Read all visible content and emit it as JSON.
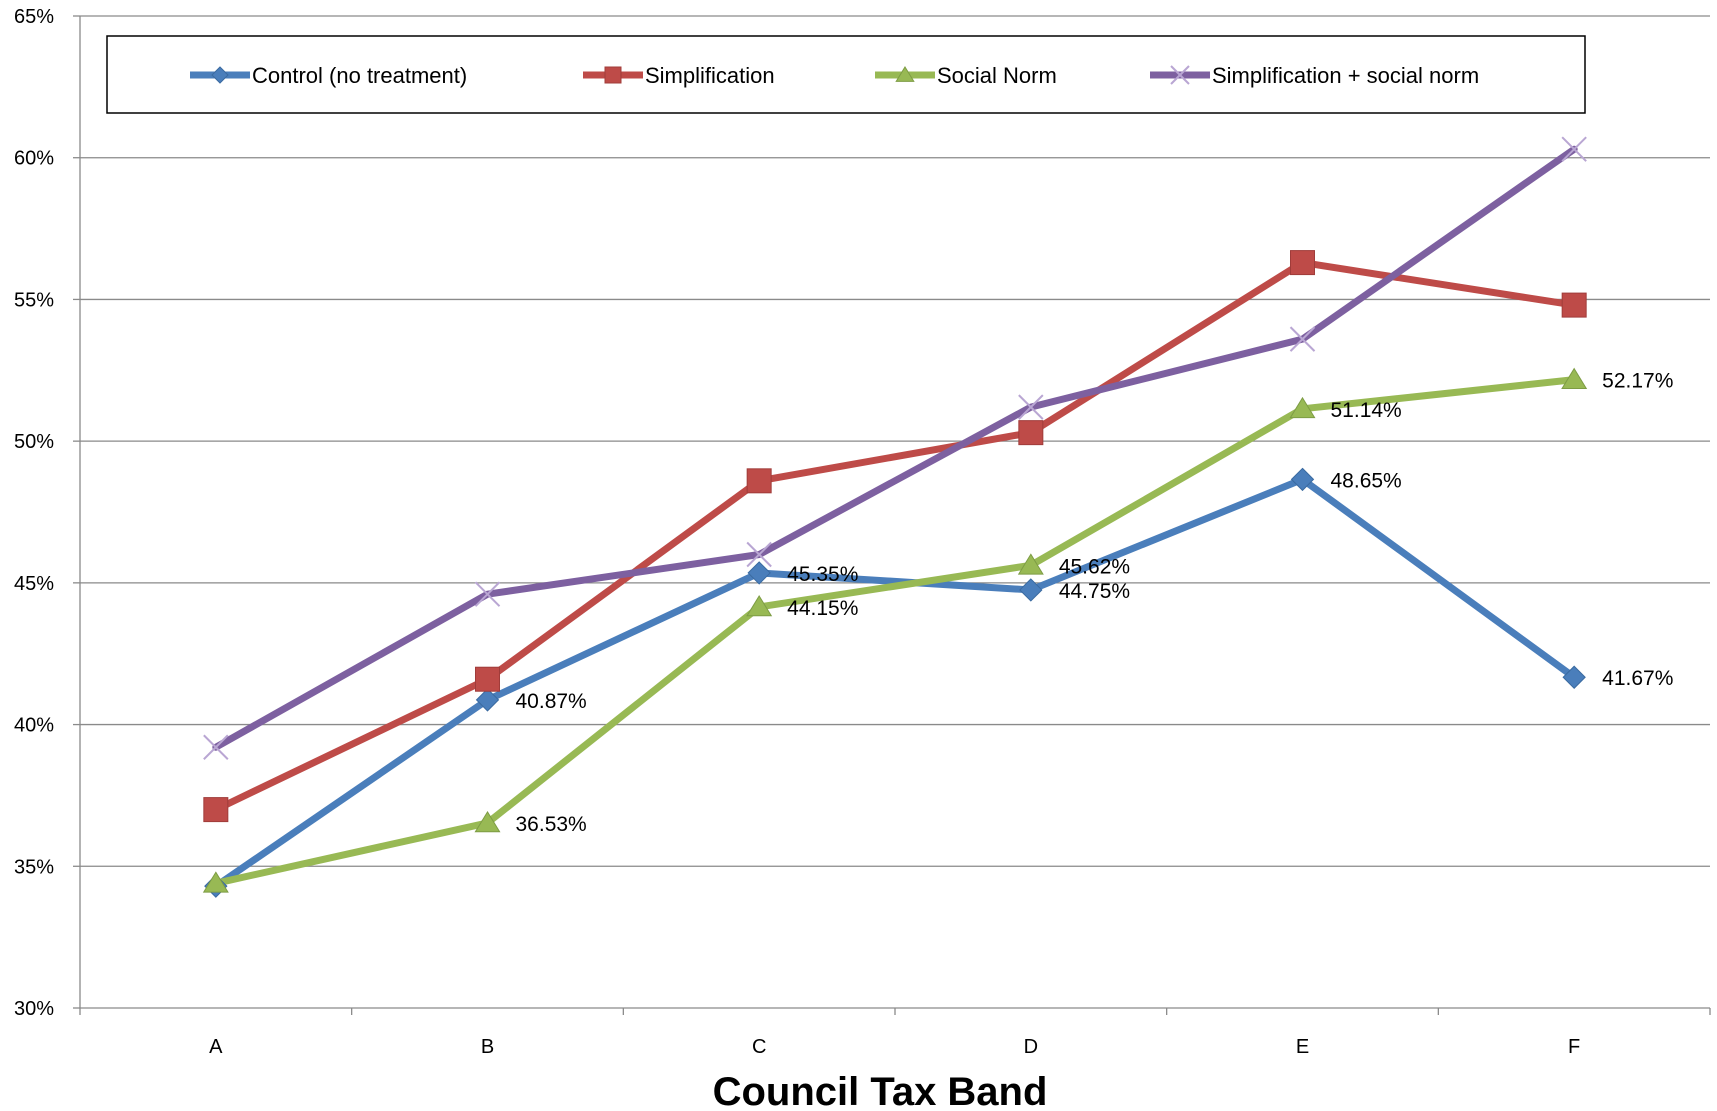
{
  "chart_data": {
    "type": "line",
    "title": "",
    "xlabel": "Council Tax Band",
    "ylabel": "",
    "categories": [
      "A",
      "B",
      "C",
      "D",
      "E",
      "F"
    ],
    "ylim": [
      30,
      65
    ],
    "yticks": [
      30,
      35,
      40,
      45,
      50,
      55,
      60,
      65
    ],
    "ytick_labels": [
      "30%",
      "35%",
      "40%",
      "45%",
      "50%",
      "55%",
      "60%",
      "65%"
    ],
    "grid": true,
    "legend_position": "top",
    "series": [
      {
        "name": "Control (no treatment)",
        "color": "#4a7ebb",
        "marker": "diamond",
        "values": [
          34.3,
          40.87,
          45.35,
          44.75,
          48.65,
          41.67
        ],
        "labels": [
          "",
          "40.87%",
          "45.35%",
          "44.75%",
          "48.65%",
          "41.67%"
        ]
      },
      {
        "name": "Simplification",
        "color": "#be4b48",
        "marker": "square",
        "values": [
          37.0,
          41.6,
          48.6,
          50.3,
          56.3,
          54.8
        ],
        "labels": [
          "",
          "",
          "",
          "",
          "",
          ""
        ]
      },
      {
        "name": "Social Norm",
        "color": "#98b954",
        "marker": "triangle",
        "values": [
          34.4,
          36.53,
          44.15,
          45.62,
          51.14,
          52.17
        ],
        "labels": [
          "",
          "36.53%",
          "44.15%",
          "45.62%",
          "51.14%",
          "52.17%"
        ]
      },
      {
        "name": "Simplification + social norm",
        "color": "#7d60a0",
        "marker": "x",
        "values": [
          39.2,
          44.6,
          46.0,
          51.2,
          53.6,
          60.3
        ],
        "labels": [
          "",
          "",
          "",
          "",
          "",
          ""
        ]
      }
    ]
  }
}
